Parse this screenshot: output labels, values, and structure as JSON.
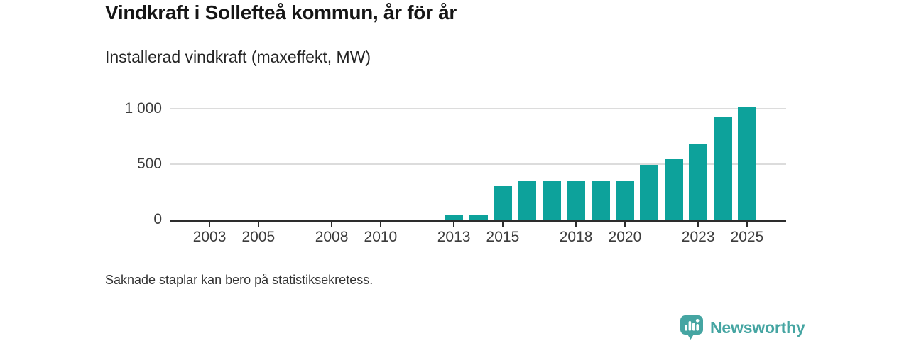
{
  "header": {
    "title": "Vindkraft i Sollefteå kommun, år för år",
    "subtitle": "Installerad vindkraft (maxeffekt, MW)"
  },
  "chart_data": {
    "type": "bar",
    "title": "Vindkraft i Sollefteå kommun, år för år",
    "ylabel": "Installerad vindkraft (maxeffekt, MW)",
    "xlabel": "",
    "categories": [
      2002,
      2003,
      2004,
      2005,
      2006,
      2007,
      2008,
      2009,
      2010,
      2011,
      2012,
      2013,
      2014,
      2015,
      2016,
      2017,
      2018,
      2019,
      2020,
      2021,
      2022,
      2023,
      2024,
      2025
    ],
    "values": [
      null,
      null,
      null,
      null,
      null,
      null,
      null,
      null,
      null,
      null,
      null,
      45,
      45,
      300,
      345,
      345,
      345,
      345,
      345,
      490,
      545,
      675,
      920,
      1015
    ],
    "xticks": [
      2003,
      2005,
      2008,
      2010,
      2013,
      2015,
      2018,
      2020,
      2023,
      2025
    ],
    "yticks": [
      0,
      500,
      1000
    ],
    "ytick_labels": [
      "0",
      "500",
      "1 000"
    ],
    "xlim": [
      2001.4,
      2026.6
    ],
    "ylim": [
      0,
      1080
    ],
    "grid": "horizontal",
    "legend": "none",
    "bar_color": "#0da29b"
  },
  "footnote": {
    "text": "Saknade staplar kan bero på statistiksekretess."
  },
  "branding": {
    "name": "Newsworthy",
    "color": "#45a5a2",
    "icon": "newsworthy-chart-bubble-icon"
  },
  "colors": {
    "bar": "#0da29b",
    "axis": "#2d2d2d",
    "grid": "#dcdcdc",
    "title_text": "#161616",
    "body_text": "#333333",
    "tick_text": "#3c3c3c"
  }
}
